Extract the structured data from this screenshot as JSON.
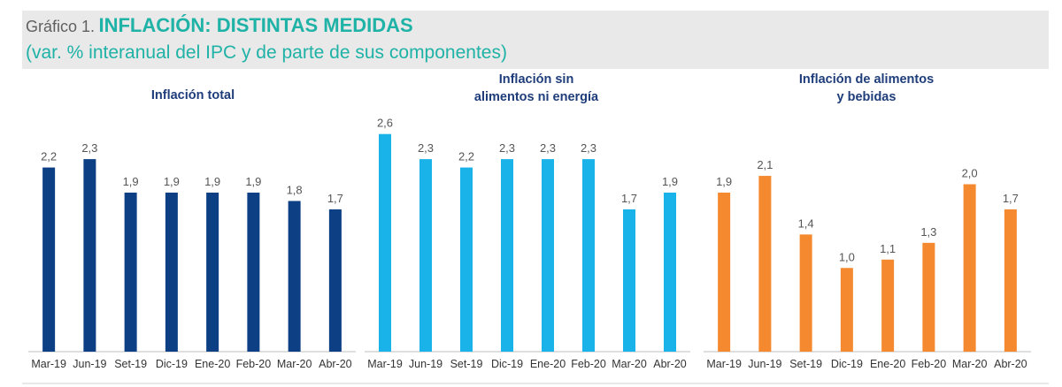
{
  "header": {
    "prefix": "Gráfico 1.",
    "title": "INFLACIÓN: DISTINTAS MEDIDAS",
    "subtitle": "(var. % interanual del IPC y de parte de sus componentes)"
  },
  "chart_data": [
    {
      "type": "bar",
      "title": [
        "Inflación total"
      ],
      "categories": [
        "Mar-19",
        "Jun-19",
        "Set-19",
        "Dic-19",
        "Ene-20",
        "Feb-20",
        "Mar-20",
        "Abr-20"
      ],
      "values": [
        2.2,
        2.3,
        1.9,
        1.9,
        1.9,
        1.9,
        1.8,
        1.7
      ],
      "labels": [
        "2,2",
        "2,3",
        "1,9",
        "1,9",
        "1,9",
        "1,9",
        "1,8",
        "1,7"
      ],
      "color": "#0d3f84",
      "ylim": [
        0,
        2.85
      ]
    },
    {
      "type": "bar",
      "title": [
        "Inflación sin",
        "alimentos ni energía"
      ],
      "categories": [
        "Mar-19",
        "Jun-19",
        "Set-19",
        "Dic-19",
        "Ene-20",
        "Feb-20",
        "Mar-20",
        "Abr-20"
      ],
      "values": [
        2.6,
        2.3,
        2.2,
        2.3,
        2.3,
        2.3,
        1.7,
        1.9
      ],
      "labels": [
        "2,6",
        "2,3",
        "2,2",
        "2,3",
        "2,3",
        "2,3",
        "1,7",
        "1,9"
      ],
      "color": "#19b3ea",
      "ylim": [
        0,
        2.85
      ]
    },
    {
      "type": "bar",
      "title": [
        "Inflación de alimentos",
        "y bebidas"
      ],
      "categories": [
        "Mar-19",
        "Jun-19",
        "Set-19",
        "Dic-19",
        "Ene-20",
        "Feb-20",
        "Mar-20",
        "Abr-20"
      ],
      "values": [
        1.9,
        2.1,
        1.4,
        1.0,
        1.1,
        1.3,
        2.0,
        1.7
      ],
      "labels": [
        "1,9",
        "2,1",
        "1,4",
        "1,0",
        "1,1",
        "1,3",
        "2,0",
        "1,7"
      ],
      "color": "#f5892f",
      "ylim": [
        0,
        2.85
      ]
    }
  ]
}
